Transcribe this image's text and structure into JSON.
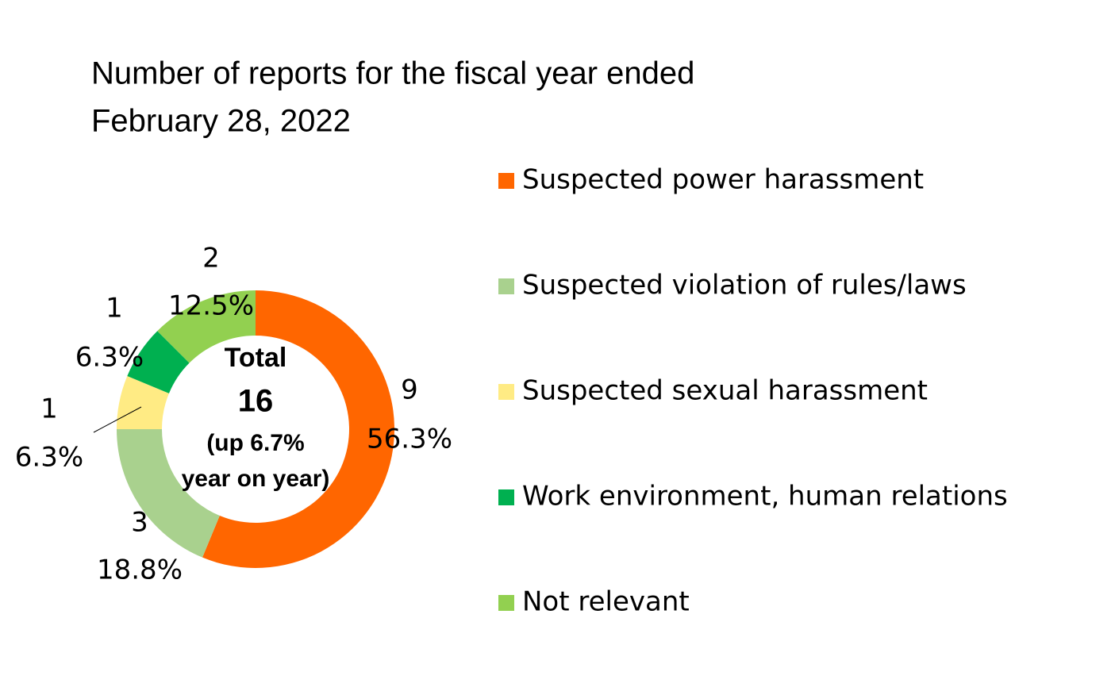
{
  "chart_data": {
    "type": "donut",
    "title": [
      "Number of reports for the fiscal year ended",
      "February 28, 2022"
    ],
    "categories": [
      "Suspected power harassment",
      "Suspected violation of rules/laws",
      "Suspected sexual harassment",
      "Work environment, human relations",
      "Not relevant"
    ],
    "values": [
      9,
      3,
      1,
      1,
      2
    ],
    "value_labels": [
      "56.3%",
      "18.8%",
      "6.3%",
      "6.3%",
      "12.5%"
    ],
    "colors": [
      "#ff6600",
      "#a9d18e",
      "#ffeb84",
      "#00b050",
      "#92d050"
    ],
    "center_text": [
      "Total",
      "16",
      "(up 6.7%",
      "year on year)"
    ],
    "legend": "right"
  }
}
